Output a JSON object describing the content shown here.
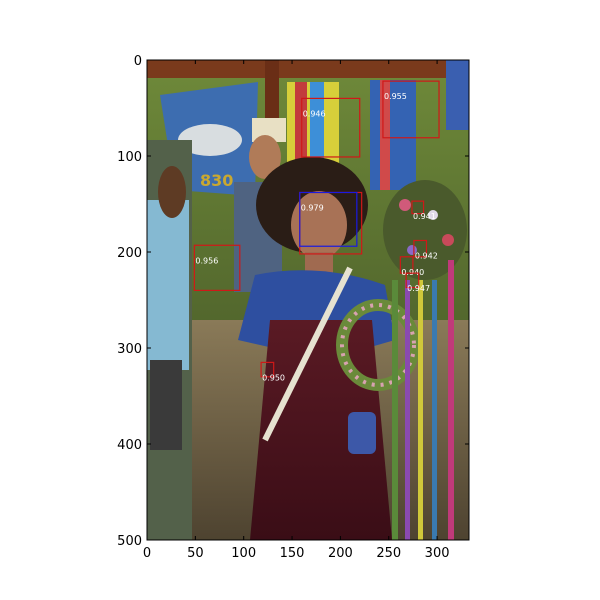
{
  "chart_data": {
    "type": "image-detections",
    "xlim": [
      0,
      333
    ],
    "ylim": [
      500,
      0
    ],
    "x_ticks": [
      0,
      50,
      100,
      150,
      200,
      250,
      300
    ],
    "y_ticks": [
      0,
      100,
      200,
      300,
      400,
      500
    ],
    "grid": false,
    "colors": {
      "detection": "#d01818",
      "highlight": "#1a1ae0",
      "score_text": "#ffffff"
    },
    "detections": [
      {
        "x0": 244,
        "y0": 22,
        "x1": 302,
        "y1": 81,
        "score": "0.955",
        "color": "detection"
      },
      {
        "x0": 160,
        "y0": 40,
        "x1": 220,
        "y1": 101,
        "score": "0.946",
        "color": "detection"
      },
      {
        "x0": 158,
        "y0": 138,
        "x1": 222,
        "y1": 202,
        "score": "0.979",
        "color": "detection"
      },
      {
        "x0": 158,
        "y0": 138,
        "x1": 217,
        "y1": 194,
        "score": "",
        "color": "highlight"
      },
      {
        "x0": 49,
        "y0": 193,
        "x1": 96,
        "y1": 240,
        "score": "0.956",
        "color": "detection"
      },
      {
        "x0": 274,
        "y0": 147,
        "x1": 286,
        "y1": 160,
        "score": "0.941",
        "color": "detection"
      },
      {
        "x0": 276,
        "y0": 188,
        "x1": 289,
        "y1": 205,
        "score": "0.942",
        "color": "detection"
      },
      {
        "x0": 262,
        "y0": 205,
        "x1": 275,
        "y1": 222,
        "score": "0.940",
        "color": "detection"
      },
      {
        "x0": 268,
        "y0": 222,
        "x1": 281,
        "y1": 237,
        "score": "0.947",
        "color": "detection"
      },
      {
        "x0": 118,
        "y0": 315,
        "x1": 131,
        "y1": 330,
        "score": "0.950",
        "color": "detection"
      }
    ]
  }
}
